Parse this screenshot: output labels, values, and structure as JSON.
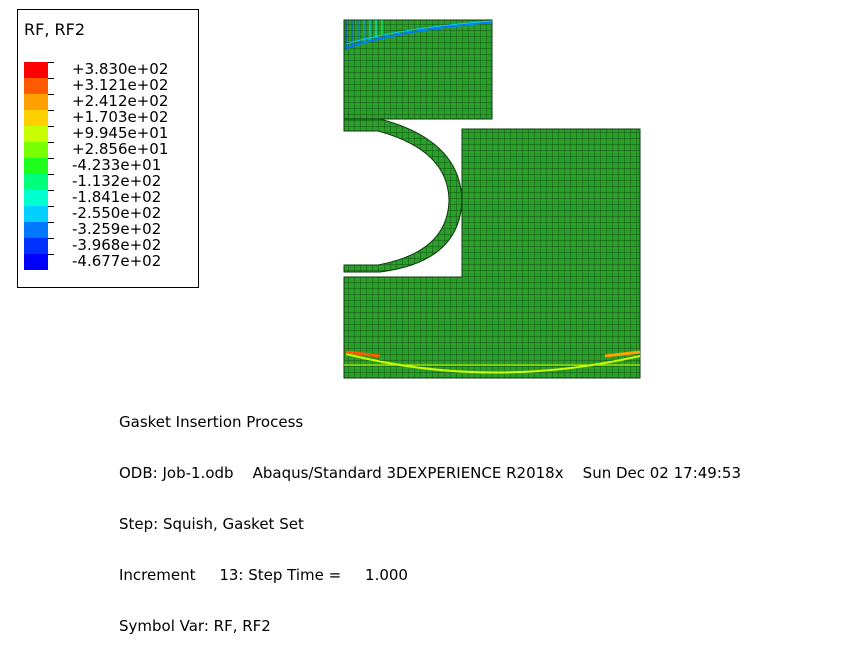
{
  "legend": {
    "title": "RF, RF2",
    "entries": [
      {
        "label": "+3.830e+02",
        "color": "#ff0000"
      },
      {
        "label": "+3.121e+02",
        "color": "#ff5a00"
      },
      {
        "label": "+2.412e+02",
        "color": "#ffa000"
      },
      {
        "label": "+1.703e+02",
        "color": "#ffd000"
      },
      {
        "label": "+9.945e+01",
        "color": "#c8ff00"
      },
      {
        "label": "+2.856e+01",
        "color": "#78ff00"
      },
      {
        "label": "-4.233e+01",
        "color": "#1eff1e"
      },
      {
        "label": "-1.132e+02",
        "color": "#00ff7a"
      },
      {
        "label": "-1.841e+02",
        "color": "#00ffd0"
      },
      {
        "label": "-2.550e+02",
        "color": "#00d0ff"
      },
      {
        "label": "-3.259e+02",
        "color": "#0078ff"
      },
      {
        "label": "-3.968e+02",
        "color": "#0032ff"
      },
      {
        "label": "-4.677e+02",
        "color": "#0000ff"
      }
    ]
  },
  "info": {
    "line1": "Gasket Insertion Process",
    "line2": "ODB: Job-1.odb    Abaqus/Standard 3DEXPERIENCE R2018x    Sun Dec 02 17:49:53",
    "line3": "Step: Squish, Gasket Set",
    "line4": "Increment     13: Step Time =     1.000",
    "line5": "Symbol Var: RF, RF2"
  },
  "colors": {
    "mesh_fill": "#2aa02a",
    "mesh_line": "#0a3a0a"
  }
}
